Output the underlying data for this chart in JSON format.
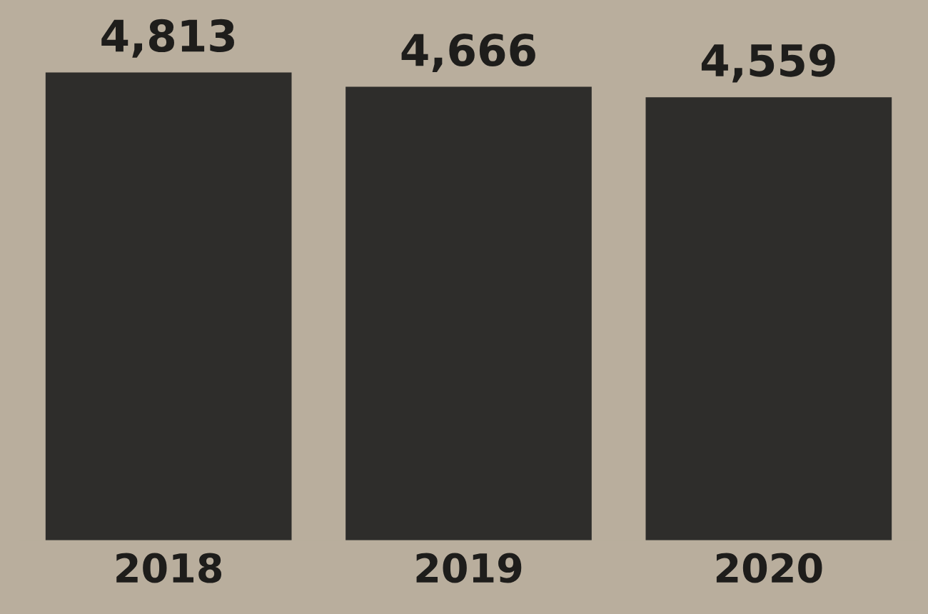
{
  "chart_data": {
    "type": "bar",
    "categories": [
      "2018",
      "2019",
      "2020"
    ],
    "values": [
      4813,
      4666,
      4559
    ],
    "value_labels": [
      "4,813",
      "4,666",
      "4,559"
    ],
    "color": "#2e2d2b",
    "tick_labels": "x"
  }
}
